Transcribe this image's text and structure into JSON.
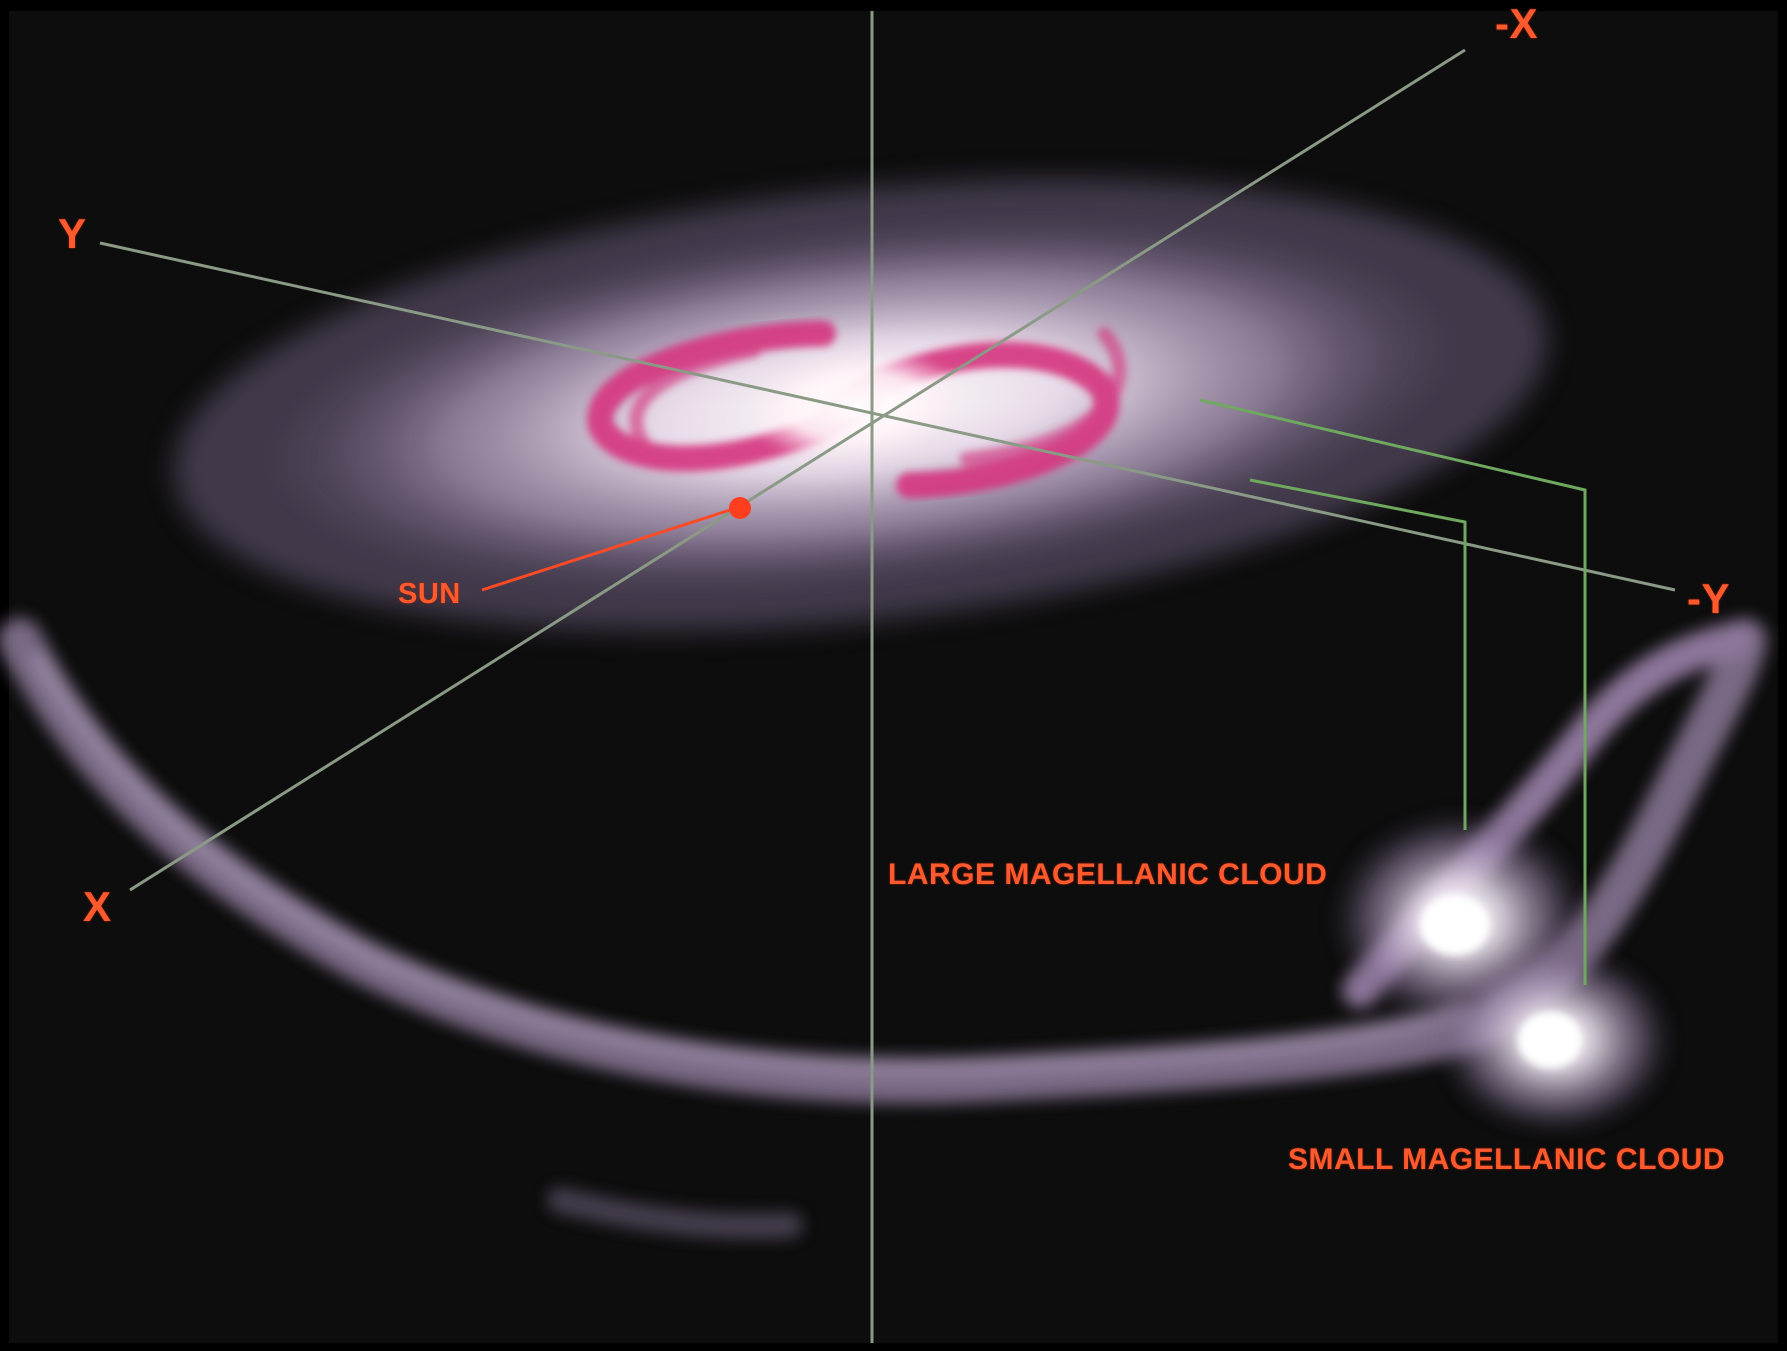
{
  "diagram": {
    "labels": {
      "y_axis_positive": "Y",
      "y_axis_negative": "-Y",
      "x_axis_positive": "X",
      "x_axis_negative": "-X",
      "sun": "SUN",
      "lmc": "LARGE MAGELLANIC CLOUD",
      "smc": "SMALL MAGELLANIC CLOUD"
    },
    "colors": {
      "background": "#0d0d0d",
      "label": "#ff5a2e",
      "axis_line": "#8a9a86",
      "cloud_pointer": "#6fa85f",
      "sun_marker": "#ff3d1f",
      "galaxy_core": "#ffffff",
      "galaxy_arms": "#d6357f",
      "galaxy_halo": "#c9b6d6",
      "stream": "#a48ab4"
    }
  }
}
